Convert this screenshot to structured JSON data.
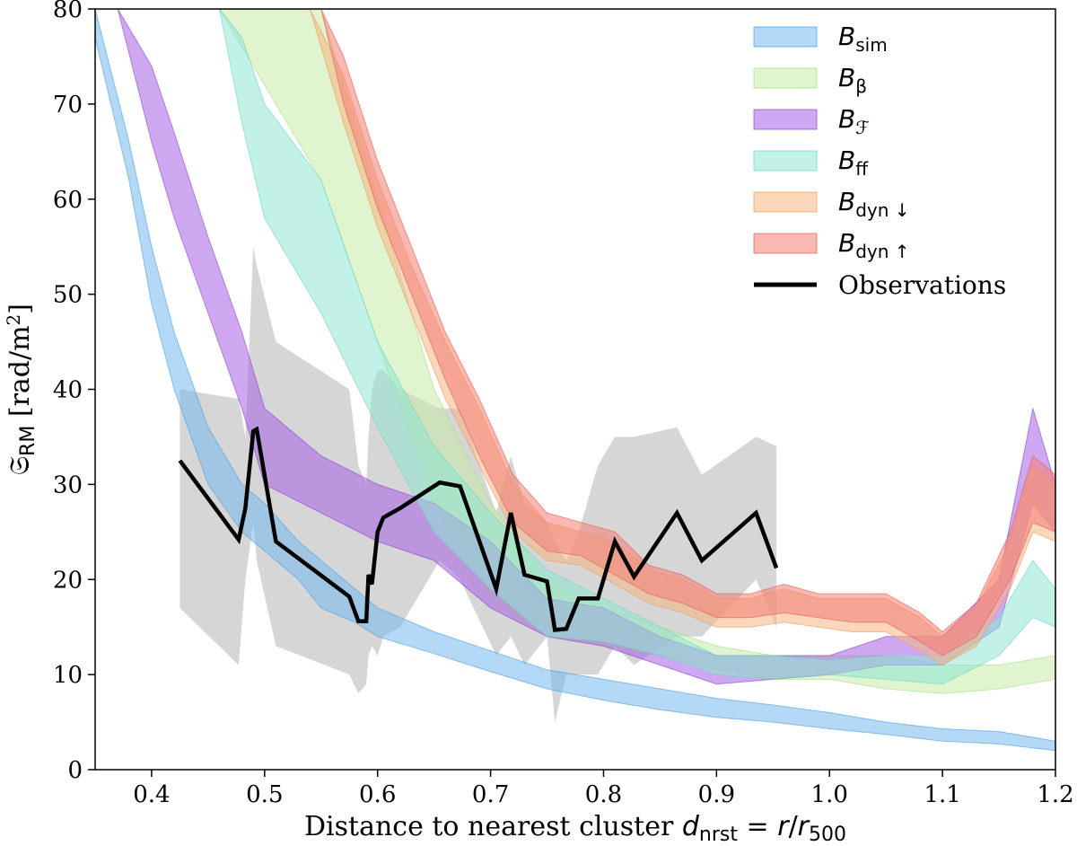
{
  "chart_data": {
    "type": "area",
    "title": "",
    "xlabel": "Distance to nearest cluster d_nrst = r/r_500",
    "xlabel_parts": {
      "main": "Distance to nearest cluster ",
      "sym": "d",
      "sym_sub": "nrst",
      "eq": " = ",
      "r": "r",
      "div": "/",
      "r2": "r",
      "r2_sub": "500"
    },
    "ylabel": "𝔖_RM [rad/m^2]",
    "ylabel_parts": {
      "sym": "𝔖",
      "sub": "RM",
      "unit_pre": " [rad/m",
      "unit_exp": "2",
      "unit_post": "]"
    },
    "xlim": [
      0.35,
      1.2
    ],
    "ylim": [
      0,
      80
    ],
    "xticks": [
      0.4,
      0.5,
      0.6,
      0.7,
      0.8,
      0.9,
      1.0,
      1.1,
      1.2
    ],
    "xtick_labels": [
      "0.4",
      "0.5",
      "0.6",
      "0.7",
      "0.8",
      "0.9",
      "1.0",
      "1.1",
      "1.2"
    ],
    "yticks": [
      0,
      10,
      20,
      30,
      40,
      50,
      60,
      70,
      80
    ],
    "ytick_labels": [
      "0",
      "10",
      "20",
      "30",
      "40",
      "50",
      "60",
      "70",
      "80"
    ],
    "legend_position": "top-right",
    "series": [
      {
        "name": "B_sim",
        "label_main": "B",
        "label_sub": "sim",
        "color": "#74b9f0",
        "edge": "#4c9de0",
        "style": "band",
        "x": [
          0.35,
          0.38,
          0.4,
          0.42,
          0.45,
          0.48,
          0.5,
          0.53,
          0.55,
          0.58,
          0.6,
          0.65,
          0.7,
          0.75,
          0.8,
          0.85,
          0.9,
          0.95,
          1.0,
          1.05,
          1.1,
          1.15,
          1.2
        ],
        "upper": [
          81,
          66,
          55,
          46,
          36,
          30,
          28,
          24,
          22,
          19,
          17,
          14.5,
          12.5,
          10.5,
          9.5,
          8.5,
          7.5,
          6.8,
          6,
          5,
          4.3,
          4,
          3
        ],
        "lower": [
          77,
          62,
          49,
          40,
          30,
          25,
          23,
          20,
          17,
          15.5,
          14,
          12.2,
          10.3,
          8.5,
          7.3,
          6.3,
          5.5,
          5,
          4.3,
          3.7,
          3,
          2.7,
          2
        ]
      },
      {
        "name": "B_beta",
        "label_main": "B",
        "label_sub": "β",
        "color": "#c6eba8",
        "edge": "#a8dc86",
        "style": "band",
        "x": [
          0.46,
          0.5,
          0.55,
          0.6,
          0.65,
          0.7,
          0.75,
          0.8,
          0.85,
          0.9,
          0.95,
          1.0,
          1.05,
          1.1,
          1.15,
          1.2
        ],
        "upper": [
          80,
          80,
          80,
          60,
          40,
          28,
          20,
          17,
          15,
          13,
          12,
          12,
          12,
          11,
          11,
          12
        ],
        "lower": [
          80,
          72,
          62,
          45,
          28,
          18,
          14,
          13,
          12,
          10.5,
          9.5,
          9.5,
          8.5,
          8,
          8.5,
          9.5
        ]
      },
      {
        "name": "B_F",
        "label_main": "B",
        "label_sub": "ℱ",
        "color": "#a561e6",
        "edge": "#8a45d0",
        "style": "band",
        "x": [
          0.37,
          0.4,
          0.42,
          0.45,
          0.48,
          0.5,
          0.55,
          0.6,
          0.65,
          0.7,
          0.75,
          0.8,
          0.85,
          0.9,
          0.95,
          1.0,
          1.05,
          1.1,
          1.15,
          1.18,
          1.2
        ],
        "upper": [
          80,
          74,
          67,
          56,
          46,
          38,
          33,
          30,
          28,
          24,
          18,
          17,
          14,
          12,
          12,
          12,
          14,
          14,
          20,
          38,
          30
        ],
        "lower": [
          80,
          66,
          58,
          48,
          38,
          30,
          27,
          24,
          22,
          17,
          14,
          13,
          11,
          9,
          9.5,
          10,
          11,
          11,
          15,
          28,
          25
        ]
      },
      {
        "name": "B_ff",
        "label_main": "B",
        "label_sub": "ff",
        "color": "#8fe6d3",
        "edge": "#69d6be",
        "style": "band",
        "x": [
          0.46,
          0.48,
          0.5,
          0.55,
          0.6,
          0.65,
          0.7,
          0.75,
          0.8,
          0.85,
          0.9,
          0.95,
          1.0,
          1.05,
          1.1,
          1.15,
          1.18,
          1.2
        ],
        "upper": [
          80,
          77,
          70,
          62,
          45,
          34,
          27,
          21,
          18,
          15,
          12,
          12,
          11.5,
          12,
          12,
          16,
          22,
          19
        ],
        "lower": [
          80,
          68,
          58,
          48,
          36,
          25,
          19,
          14,
          13.5,
          12,
          10,
          9.5,
          10,
          9.5,
          9,
          12,
          16,
          15
        ]
      },
      {
        "name": "B_dyn_down",
        "label_main": "B",
        "label_sub": "dyn ↓",
        "color": "#f6b483",
        "edge": "#f09a5e",
        "style": "band",
        "x": [
          0.54,
          0.57,
          0.6,
          0.63,
          0.66,
          0.69,
          0.72,
          0.75,
          0.78,
          0.81,
          0.84,
          0.87,
          0.9,
          0.93,
          0.96,
          0.99,
          1.02,
          1.05,
          1.08,
          1.1,
          1.13,
          1.16,
          1.18,
          1.2
        ],
        "upper": [
          80,
          73,
          62,
          53,
          45,
          38,
          30,
          26,
          25,
          24,
          21,
          20,
          18,
          18,
          19,
          18,
          18,
          18,
          16,
          14,
          17,
          24,
          32,
          30
        ],
        "lower": [
          80,
          68,
          57,
          48,
          39,
          32,
          25,
          22,
          21.5,
          19.5,
          17.5,
          16.5,
          15,
          15,
          15.5,
          15,
          14.5,
          14.5,
          12.5,
          11,
          13,
          19,
          25,
          24
        ]
      },
      {
        "name": "B_dyn_up",
        "label_main": "B",
        "label_sub": "dyn ↑",
        "color": "#f47d73",
        "edge": "#ea5a4f",
        "style": "band",
        "x": [
          0.55,
          0.57,
          0.6,
          0.63,
          0.66,
          0.69,
          0.72,
          0.75,
          0.78,
          0.81,
          0.84,
          0.87,
          0.9,
          0.93,
          0.96,
          0.99,
          1.02,
          1.05,
          1.08,
          1.1,
          1.13,
          1.16,
          1.18,
          1.2
        ],
        "upper": [
          80,
          75,
          64,
          55,
          46,
          39,
          31,
          27,
          26,
          25,
          21.5,
          20.5,
          18.5,
          18.5,
          19.5,
          18.5,
          18.5,
          18.5,
          16.5,
          14.5,
          17.5,
          25,
          33,
          31
        ],
        "lower": [
          80,
          70,
          59,
          50,
          41,
          33,
          26,
          23,
          22.5,
          20.5,
          18.5,
          17.5,
          16,
          16,
          16.5,
          16,
          15.5,
          15.5,
          13.5,
          12,
          14,
          20,
          26,
          25
        ]
      },
      {
        "name": "Observations",
        "label_main": "Observations",
        "label_sub": "",
        "color": "#000000",
        "style": "line",
        "x": [
          0.425,
          0.477,
          0.483,
          0.49,
          0.493,
          0.51,
          0.575,
          0.583,
          0.59,
          0.592,
          0.595,
          0.6,
          0.605,
          0.62,
          0.655,
          0.673,
          0.705,
          0.718,
          0.73,
          0.75,
          0.757,
          0.767,
          0.778,
          0.795,
          0.81,
          0.827,
          0.865,
          0.887,
          0.935,
          0.953
        ],
        "y": [
          32.5,
          24.2,
          27.5,
          35.6,
          35.8,
          24.0,
          18.2,
          15.6,
          15.6,
          20.5,
          19.5,
          25.0,
          26.5,
          27.5,
          30.2,
          29.8,
          19.0,
          27.0,
          20.5,
          19.8,
          14.7,
          14.8,
          18.0,
          18.0,
          24.0,
          20.3,
          27.0,
          22.0,
          27.0,
          21.2
        ],
        "upper": [
          40,
          39,
          35,
          55,
          53,
          45,
          40,
          32,
          30,
          35,
          40,
          42,
          42,
          40,
          38,
          38,
          27,
          33,
          28,
          26,
          24,
          22,
          25,
          32,
          35,
          35,
          36,
          31,
          35,
          34
        ],
        "lower": [
          17,
          11,
          20,
          26,
          22,
          13,
          10,
          8,
          9,
          12,
          13,
          12,
          14,
          15,
          22,
          20,
          12,
          14,
          11,
          14,
          5,
          10,
          10,
          10,
          13,
          11,
          14,
          14,
          20,
          15
        ],
        "band_color": "#9e9e9e"
      }
    ]
  }
}
